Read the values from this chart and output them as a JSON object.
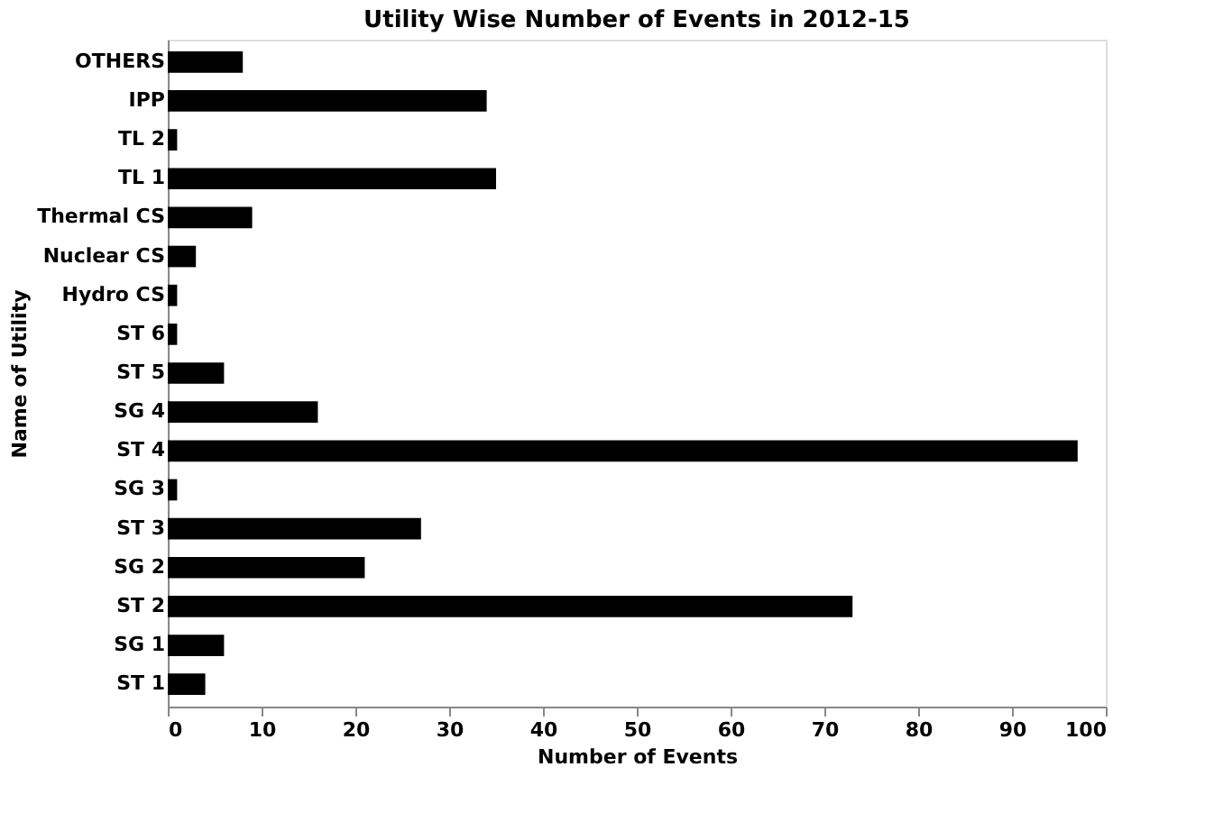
{
  "chart_data": {
    "type": "bar",
    "orientation": "horizontal",
    "title": "Utility Wise Number of Events in 2012-15",
    "xlabel": "Number of Events",
    "ylabel": "Name of Utility",
    "categories": [
      "OTHERS",
      "IPP",
      "TL 2",
      "TL 1",
      "Thermal CS",
      "Nuclear CS",
      "Hydro CS",
      "ST 6",
      "ST 5",
      "SG 4",
      "ST 4",
      "SG 3",
      "ST 3",
      "SG 2",
      "ST 2",
      "SG 1",
      "ST 1"
    ],
    "values": [
      8,
      34,
      1,
      35,
      9,
      3,
      1,
      1,
      6,
      16,
      97,
      1,
      27,
      21,
      73,
      6,
      4
    ],
    "color": "#000000",
    "xlim": [
      0,
      100
    ],
    "xticks": [
      0,
      10,
      20,
      30,
      40,
      50,
      60,
      70,
      80,
      90,
      100
    ],
    "grid": false
  }
}
